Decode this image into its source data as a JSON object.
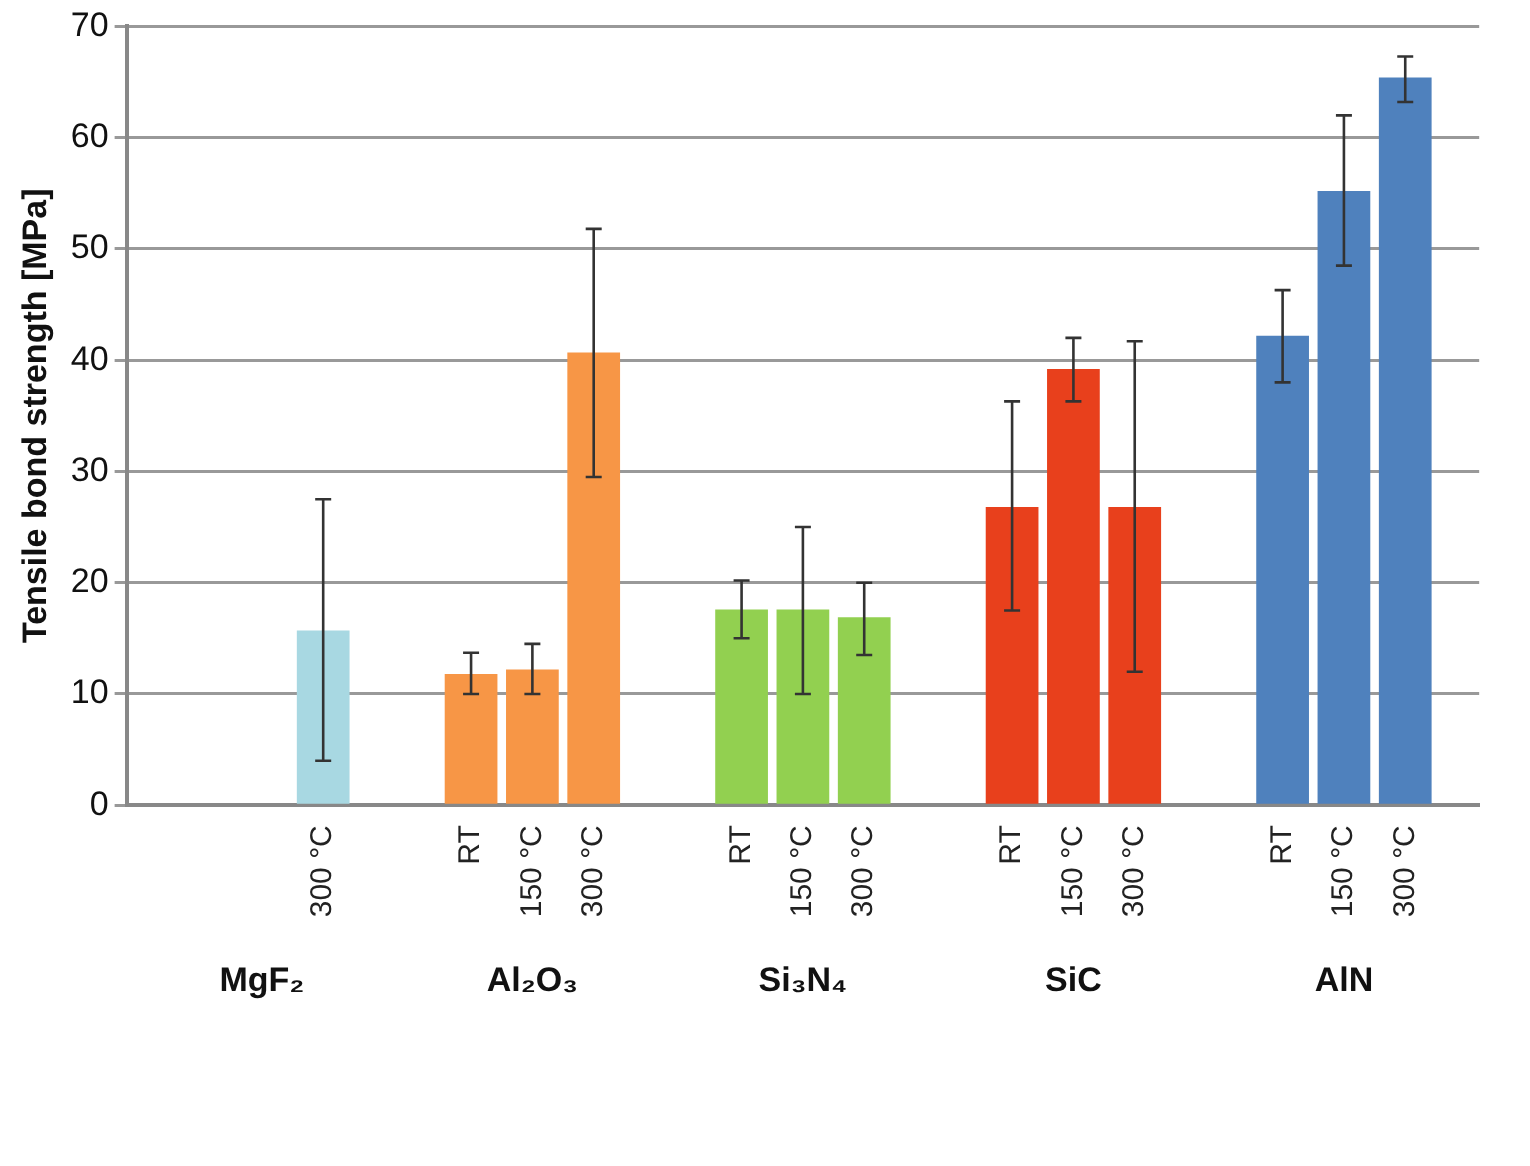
{
  "chart_data": {
    "type": "bar",
    "ylabel": "Tensile bond strength [MPa]",
    "categories": [
      "MgF₂",
      "Al₂O₃",
      "Si₃N₄",
      "SiC",
      "AlN"
    ],
    "series": [
      {
        "name": "RT",
        "colors": [
          "#a8d8e2",
          "#f79646",
          "#92d050",
          "#e8401c",
          "#4f81bd"
        ],
        "values": [
          null,
          11.8,
          17.6,
          26.8,
          42.2
        ],
        "errors": [
          null,
          [
            10.0,
            13.7
          ],
          [
            15.0,
            20.2
          ],
          [
            17.5,
            36.3
          ],
          [
            38.0,
            46.3
          ]
        ]
      },
      {
        "name": "150 °C",
        "colors": [
          "#a8d8e2",
          "#f79646",
          "#92d050",
          "#e8401c",
          "#4f81bd"
        ],
        "values": [
          null,
          12.2,
          17.6,
          39.2,
          55.2
        ],
        "errors": [
          null,
          [
            10.0,
            14.5
          ],
          [
            10.0,
            25.0
          ],
          [
            36.3,
            42.0
          ],
          [
            48.5,
            62.0
          ]
        ]
      },
      {
        "name": "300 °C",
        "colors": [
          "#a8d8e2",
          "#f79646",
          "#92d050",
          "#e8401c",
          "#4f81bd"
        ],
        "values": [
          15.7,
          40.7,
          16.9,
          26.8,
          65.4
        ],
        "errors": [
          [
            4.0,
            27.5
          ],
          [
            29.5,
            51.8
          ],
          [
            13.5,
            20.0
          ],
          [
            12.0,
            41.7
          ],
          [
            63.2,
            67.3
          ]
        ]
      }
    ],
    "ylim": [
      0,
      70
    ],
    "yticks": [
      0,
      10,
      20,
      30,
      40,
      50,
      60,
      70
    ],
    "grid": "y",
    "legend": false
  }
}
